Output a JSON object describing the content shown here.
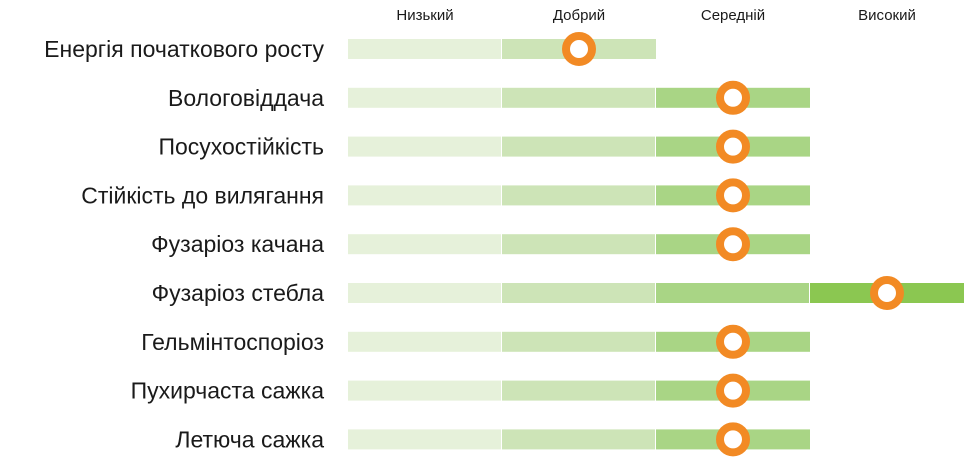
{
  "chart_data": {
    "type": "bar",
    "levels": [
      "Низький",
      "Добрий",
      "Середній",
      "Високий"
    ],
    "categories": [
      "Енергія початкового росту",
      "Вологовіддача",
      "Посухостійкість",
      "Стійкість до вилягання",
      "Фузаріоз качана",
      "Фузаріоз стебла",
      "Гельмінтоспоріоз",
      "Пухирчаста сажка",
      "Летюча сажка"
    ],
    "values": [
      1.5,
      2.5,
      2.5,
      2.5,
      2.5,
      3.5,
      2.5,
      2.5,
      2.5
    ],
    "max": 4,
    "colors": {
      "segments": [
        "#e6f1da",
        "#cde4b7",
        "#a9d585",
        "#8bc751"
      ],
      "marker": "#f28a24",
      "marker_fill": "#ffffff",
      "text": "#1a1a1a"
    }
  }
}
